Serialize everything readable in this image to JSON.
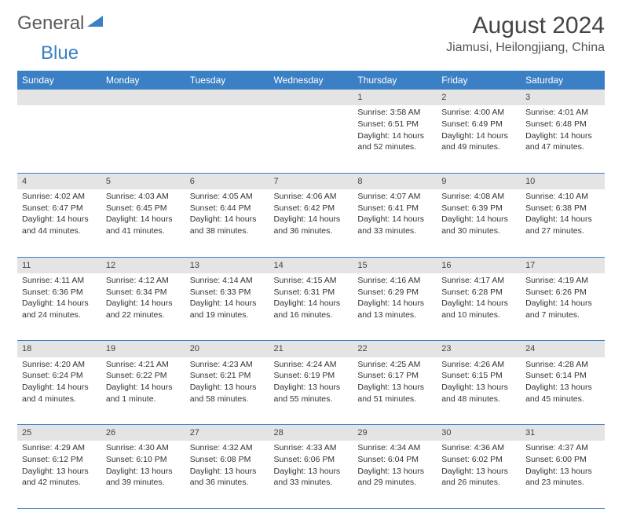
{
  "logo": {
    "word1": "General",
    "word2": "Blue"
  },
  "brand_color": "#3b7fc4",
  "title": "August 2024",
  "location": "Jiamusi, Heilongjiang, China",
  "day_headers": [
    "Sunday",
    "Monday",
    "Tuesday",
    "Wednesday",
    "Thursday",
    "Friday",
    "Saturday"
  ],
  "weeks": [
    [
      null,
      null,
      null,
      null,
      {
        "n": "1",
        "sr": "Sunrise: 3:58 AM",
        "ss": "Sunset: 6:51 PM",
        "dl1": "Daylight: 14 hours",
        "dl2": "and 52 minutes."
      },
      {
        "n": "2",
        "sr": "Sunrise: 4:00 AM",
        "ss": "Sunset: 6:49 PM",
        "dl1": "Daylight: 14 hours",
        "dl2": "and 49 minutes."
      },
      {
        "n": "3",
        "sr": "Sunrise: 4:01 AM",
        "ss": "Sunset: 6:48 PM",
        "dl1": "Daylight: 14 hours",
        "dl2": "and 47 minutes."
      }
    ],
    [
      {
        "n": "4",
        "sr": "Sunrise: 4:02 AM",
        "ss": "Sunset: 6:47 PM",
        "dl1": "Daylight: 14 hours",
        "dl2": "and 44 minutes."
      },
      {
        "n": "5",
        "sr": "Sunrise: 4:03 AM",
        "ss": "Sunset: 6:45 PM",
        "dl1": "Daylight: 14 hours",
        "dl2": "and 41 minutes."
      },
      {
        "n": "6",
        "sr": "Sunrise: 4:05 AM",
        "ss": "Sunset: 6:44 PM",
        "dl1": "Daylight: 14 hours",
        "dl2": "and 38 minutes."
      },
      {
        "n": "7",
        "sr": "Sunrise: 4:06 AM",
        "ss": "Sunset: 6:42 PM",
        "dl1": "Daylight: 14 hours",
        "dl2": "and 36 minutes."
      },
      {
        "n": "8",
        "sr": "Sunrise: 4:07 AM",
        "ss": "Sunset: 6:41 PM",
        "dl1": "Daylight: 14 hours",
        "dl2": "and 33 minutes."
      },
      {
        "n": "9",
        "sr": "Sunrise: 4:08 AM",
        "ss": "Sunset: 6:39 PM",
        "dl1": "Daylight: 14 hours",
        "dl2": "and 30 minutes."
      },
      {
        "n": "10",
        "sr": "Sunrise: 4:10 AM",
        "ss": "Sunset: 6:38 PM",
        "dl1": "Daylight: 14 hours",
        "dl2": "and 27 minutes."
      }
    ],
    [
      {
        "n": "11",
        "sr": "Sunrise: 4:11 AM",
        "ss": "Sunset: 6:36 PM",
        "dl1": "Daylight: 14 hours",
        "dl2": "and 24 minutes."
      },
      {
        "n": "12",
        "sr": "Sunrise: 4:12 AM",
        "ss": "Sunset: 6:34 PM",
        "dl1": "Daylight: 14 hours",
        "dl2": "and 22 minutes."
      },
      {
        "n": "13",
        "sr": "Sunrise: 4:14 AM",
        "ss": "Sunset: 6:33 PM",
        "dl1": "Daylight: 14 hours",
        "dl2": "and 19 minutes."
      },
      {
        "n": "14",
        "sr": "Sunrise: 4:15 AM",
        "ss": "Sunset: 6:31 PM",
        "dl1": "Daylight: 14 hours",
        "dl2": "and 16 minutes."
      },
      {
        "n": "15",
        "sr": "Sunrise: 4:16 AM",
        "ss": "Sunset: 6:29 PM",
        "dl1": "Daylight: 14 hours",
        "dl2": "and 13 minutes."
      },
      {
        "n": "16",
        "sr": "Sunrise: 4:17 AM",
        "ss": "Sunset: 6:28 PM",
        "dl1": "Daylight: 14 hours",
        "dl2": "and 10 minutes."
      },
      {
        "n": "17",
        "sr": "Sunrise: 4:19 AM",
        "ss": "Sunset: 6:26 PM",
        "dl1": "Daylight: 14 hours",
        "dl2": "and 7 minutes."
      }
    ],
    [
      {
        "n": "18",
        "sr": "Sunrise: 4:20 AM",
        "ss": "Sunset: 6:24 PM",
        "dl1": "Daylight: 14 hours",
        "dl2": "and 4 minutes."
      },
      {
        "n": "19",
        "sr": "Sunrise: 4:21 AM",
        "ss": "Sunset: 6:22 PM",
        "dl1": "Daylight: 14 hours",
        "dl2": "and 1 minute."
      },
      {
        "n": "20",
        "sr": "Sunrise: 4:23 AM",
        "ss": "Sunset: 6:21 PM",
        "dl1": "Daylight: 13 hours",
        "dl2": "and 58 minutes."
      },
      {
        "n": "21",
        "sr": "Sunrise: 4:24 AM",
        "ss": "Sunset: 6:19 PM",
        "dl1": "Daylight: 13 hours",
        "dl2": "and 55 minutes."
      },
      {
        "n": "22",
        "sr": "Sunrise: 4:25 AM",
        "ss": "Sunset: 6:17 PM",
        "dl1": "Daylight: 13 hours",
        "dl2": "and 51 minutes."
      },
      {
        "n": "23",
        "sr": "Sunrise: 4:26 AM",
        "ss": "Sunset: 6:15 PM",
        "dl1": "Daylight: 13 hours",
        "dl2": "and 48 minutes."
      },
      {
        "n": "24",
        "sr": "Sunrise: 4:28 AM",
        "ss": "Sunset: 6:14 PM",
        "dl1": "Daylight: 13 hours",
        "dl2": "and 45 minutes."
      }
    ],
    [
      {
        "n": "25",
        "sr": "Sunrise: 4:29 AM",
        "ss": "Sunset: 6:12 PM",
        "dl1": "Daylight: 13 hours",
        "dl2": "and 42 minutes."
      },
      {
        "n": "26",
        "sr": "Sunrise: 4:30 AM",
        "ss": "Sunset: 6:10 PM",
        "dl1": "Daylight: 13 hours",
        "dl2": "and 39 minutes."
      },
      {
        "n": "27",
        "sr": "Sunrise: 4:32 AM",
        "ss": "Sunset: 6:08 PM",
        "dl1": "Daylight: 13 hours",
        "dl2": "and 36 minutes."
      },
      {
        "n": "28",
        "sr": "Sunrise: 4:33 AM",
        "ss": "Sunset: 6:06 PM",
        "dl1": "Daylight: 13 hours",
        "dl2": "and 33 minutes."
      },
      {
        "n": "29",
        "sr": "Sunrise: 4:34 AM",
        "ss": "Sunset: 6:04 PM",
        "dl1": "Daylight: 13 hours",
        "dl2": "and 29 minutes."
      },
      {
        "n": "30",
        "sr": "Sunrise: 4:36 AM",
        "ss": "Sunset: 6:02 PM",
        "dl1": "Daylight: 13 hours",
        "dl2": "and 26 minutes."
      },
      {
        "n": "31",
        "sr": "Sunrise: 4:37 AM",
        "ss": "Sunset: 6:00 PM",
        "dl1": "Daylight: 13 hours",
        "dl2": "and 23 minutes."
      }
    ]
  ]
}
